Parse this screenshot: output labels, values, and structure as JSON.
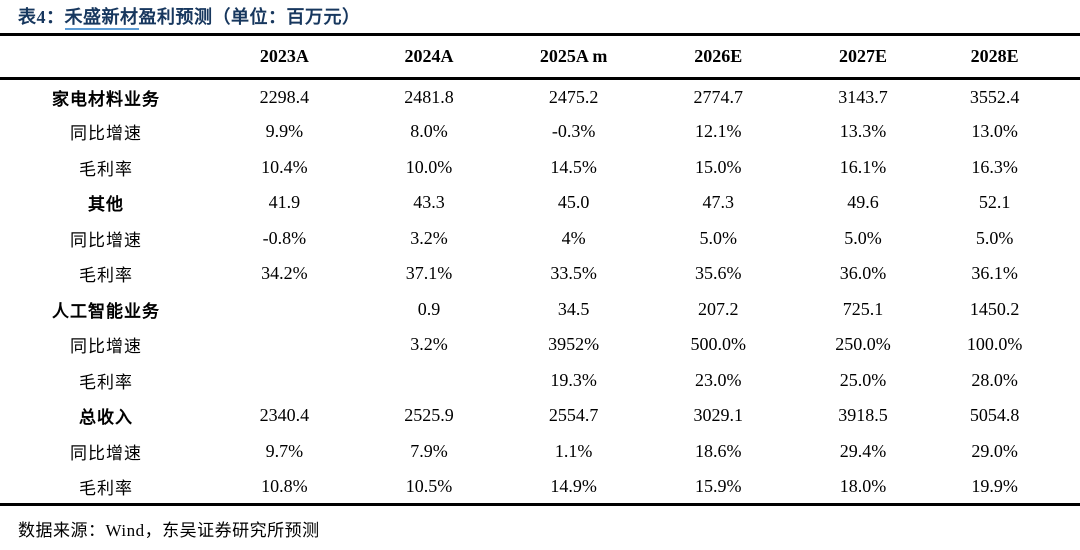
{
  "title": {
    "prefix": "表4：",
    "company": "禾盛新材",
    "suffix": "盈利预测（单位：百万元）"
  },
  "colors": {
    "title_navy": "#17375E",
    "link_underline": "#5B9BD5",
    "border": "#000000"
  },
  "table": {
    "columns": [
      "2023A",
      "2024A",
      "2025A m",
      "2026E",
      "2027E",
      "2028E"
    ],
    "rows": [
      {
        "label": "家电材料业务",
        "values": [
          "2298.4",
          "2481.8",
          "2475.2",
          "2774.7",
          "3143.7",
          "3552.4"
        ]
      },
      {
        "label": "同比增速",
        "values": [
          "9.9%",
          "8.0%",
          "-0.3%",
          "12.1%",
          "13.3%",
          "13.0%"
        ]
      },
      {
        "label": "毛利率",
        "values": [
          "10.4%",
          "10.0%",
          "14.5%",
          "15.0%",
          "16.1%",
          "16.3%"
        ]
      },
      {
        "label": "其他",
        "values": [
          "41.9",
          "43.3",
          "45.0",
          "47.3",
          "49.6",
          "52.1"
        ]
      },
      {
        "label": "同比增速",
        "values": [
          "-0.8%",
          "3.2%",
          "4%",
          "5.0%",
          "5.0%",
          "5.0%"
        ]
      },
      {
        "label": "毛利率",
        "values": [
          "34.2%",
          "37.1%",
          "33.5%",
          "35.6%",
          "36.0%",
          "36.1%"
        ]
      },
      {
        "label": "人工智能业务",
        "values": [
          "",
          "0.9",
          "34.5",
          "207.2",
          "725.1",
          "1450.2"
        ]
      },
      {
        "label": "同比增速",
        "values": [
          "",
          "3.2%",
          "3952%",
          "500.0%",
          "250.0%",
          "100.0%"
        ]
      },
      {
        "label": "毛利率",
        "values": [
          "",
          "",
          "19.3%",
          "23.0%",
          "25.0%",
          "28.0%"
        ]
      },
      {
        "label": "总收入",
        "values": [
          "2340.4",
          "2525.9",
          "2554.7",
          "3029.1",
          "3918.5",
          "5054.8"
        ]
      },
      {
        "label": "同比增速",
        "values": [
          "9.7%",
          "7.9%",
          "1.1%",
          "18.6%",
          "29.4%",
          "29.0%"
        ]
      },
      {
        "label": "毛利率",
        "values": [
          "10.8%",
          "10.5%",
          "14.9%",
          "15.9%",
          "18.0%",
          "19.9%"
        ]
      }
    ]
  },
  "footer": {
    "source": "数据来源：Wind，东吴证券研究所预测"
  }
}
